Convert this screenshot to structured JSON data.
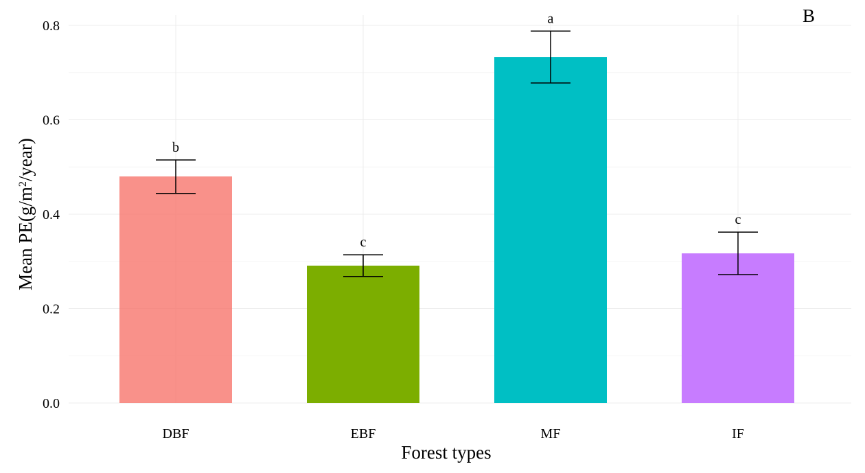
{
  "chart_data": {
    "type": "bar",
    "panel_label": "B",
    "xlabel": "Forest types",
    "ylabel_prefix": "Mean PE(g/m",
    "ylabel_sup": "2",
    "ylabel_suffix": "/year)",
    "categories": [
      "DBF",
      "EBF",
      "MF",
      "IF"
    ],
    "values": [
      0.48,
      0.291,
      0.733,
      0.317
    ],
    "error_low": [
      0.444,
      0.268,
      0.678,
      0.272
    ],
    "error_high": [
      0.515,
      0.314,
      0.788,
      0.362
    ],
    "significance": [
      "b",
      "c",
      "a",
      "c"
    ],
    "colors": [
      "#F8766D",
      "#7CAE00",
      "#00BFC4",
      "#C77CFF"
    ],
    "ylim": [
      0,
      0.8
    ],
    "yticks": [
      0.0,
      0.2,
      0.4,
      0.6,
      0.8
    ],
    "ytick_labels": [
      "0.0",
      "0.2",
      "0.4",
      "0.6",
      "0.8"
    ],
    "grid": true,
    "legend": "none"
  }
}
